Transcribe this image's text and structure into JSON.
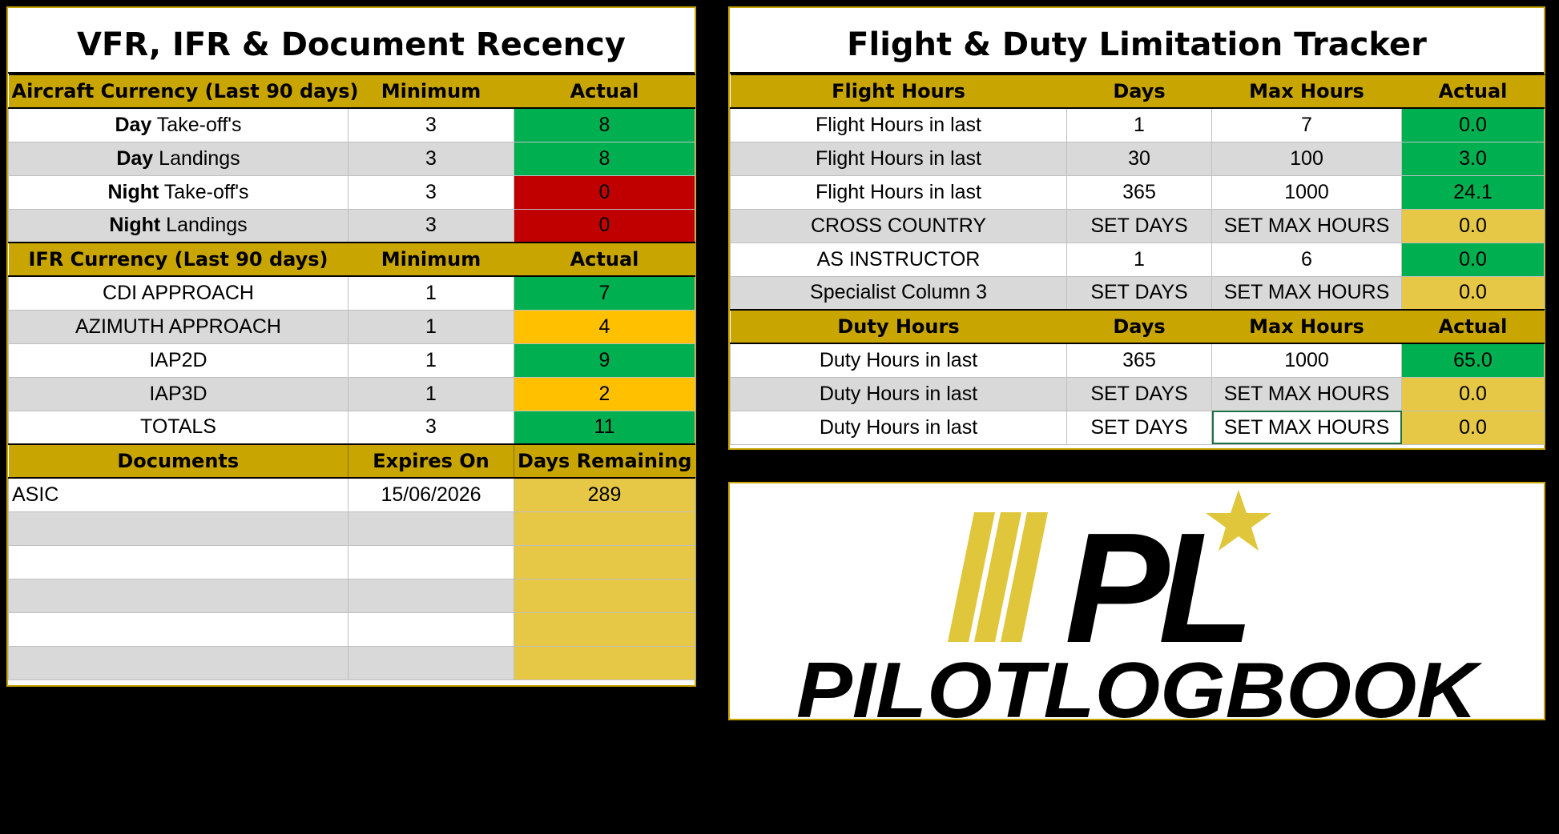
{
  "recency": {
    "title": "VFR, IFR & Document Recency",
    "aircraft_header": {
      "label": "Aircraft Currency (Last 90 days)",
      "min": "Minimum",
      "actual": "Actual"
    },
    "aircraft_rows": [
      {
        "bold": "Day",
        "rest": " Take-off's",
        "min": "3",
        "actual": "8",
        "status": "green"
      },
      {
        "bold": "Day",
        "rest": " Landings",
        "min": "3",
        "actual": "8",
        "status": "green"
      },
      {
        "bold": "Night",
        "rest": " Take-off's",
        "min": "3",
        "actual": "0",
        "status": "red"
      },
      {
        "bold": "Night",
        "rest": " Landings",
        "min": "3",
        "actual": "0",
        "status": "red"
      }
    ],
    "ifr_header": {
      "label": "IFR Currency (Last 90 days)",
      "min": "Minimum",
      "actual": "Actual"
    },
    "ifr_rows": [
      {
        "label": "CDI APPROACH",
        "min": "1",
        "actual": "7",
        "status": "green"
      },
      {
        "label": "AZIMUTH APPROACH",
        "min": "1",
        "actual": "4",
        "status": "amber"
      },
      {
        "label": "IAP2D",
        "min": "1",
        "actual": "9",
        "status": "green"
      },
      {
        "label": "IAP3D",
        "min": "1",
        "actual": "2",
        "status": "amber"
      },
      {
        "label": "TOTALS",
        "min": "3",
        "actual": "11",
        "status": "green"
      }
    ],
    "doc_header": {
      "label": "Documents",
      "expires": "Expires On",
      "remaining": "Days Remaining"
    },
    "doc_rows": [
      {
        "label": "ASIC",
        "expires": "15/06/2026",
        "remaining": "289"
      },
      {
        "label": "",
        "expires": "",
        "remaining": ""
      },
      {
        "label": "",
        "expires": "",
        "remaining": ""
      },
      {
        "label": "",
        "expires": "",
        "remaining": ""
      },
      {
        "label": "",
        "expires": "",
        "remaining": ""
      },
      {
        "label": "",
        "expires": "",
        "remaining": ""
      }
    ]
  },
  "limits": {
    "title": "Flight & Duty Limitation Tracker",
    "flight_header": {
      "label": "Flight Hours",
      "days": "Days",
      "max": "Max Hours",
      "actual": "Actual"
    },
    "flight_rows": [
      {
        "label": "Flight Hours in last",
        "days": "1",
        "max": "7",
        "actual": "0.0",
        "status": "green"
      },
      {
        "label": "Flight Hours in last",
        "days": "30",
        "max": "100",
        "actual": "3.0",
        "status": "green"
      },
      {
        "label": "Flight Hours in last",
        "days": "365",
        "max": "1000",
        "actual": "24.1",
        "status": "green"
      },
      {
        "label": "CROSS COUNTRY",
        "days": "SET DAYS",
        "max": "SET MAX HOURS",
        "actual": "0.0",
        "status": "gold"
      },
      {
        "label": "AS INSTRUCTOR",
        "days": "1",
        "max": "6",
        "actual": "0.0",
        "status": "green"
      },
      {
        "label": "Specialist Column 3",
        "days": "SET DAYS",
        "max": "SET MAX HOURS",
        "actual": "0.0",
        "status": "gold"
      }
    ],
    "duty_header": {
      "label": "Duty Hours",
      "days": "Days",
      "max": "Max Hours",
      "actual": "Actual"
    },
    "duty_rows": [
      {
        "label": "Duty Hours in last",
        "days": "365",
        "max": "1000",
        "actual": "65.0",
        "status": "green"
      },
      {
        "label": "Duty Hours in last",
        "days": "SET DAYS",
        "max": "SET MAX HOURS",
        "actual": "0.0",
        "status": "gold"
      },
      {
        "label": "Duty Hours in last",
        "days": "SET DAYS",
        "max": "SET MAX HOURS",
        "actual": "0.0",
        "status": "gold"
      }
    ]
  },
  "logo": {
    "monogram": "PL",
    "wordmark": "PILOTLOGBOOK",
    "gold": "#e0c63a",
    "black": "#000000"
  },
  "colors": {
    "header_gold": "#c9a500",
    "green": "#00b050",
    "red": "#c00000",
    "amber": "#ffc000",
    "gold_cell": "#e6c846",
    "stripe": "#d9d9d9"
  }
}
